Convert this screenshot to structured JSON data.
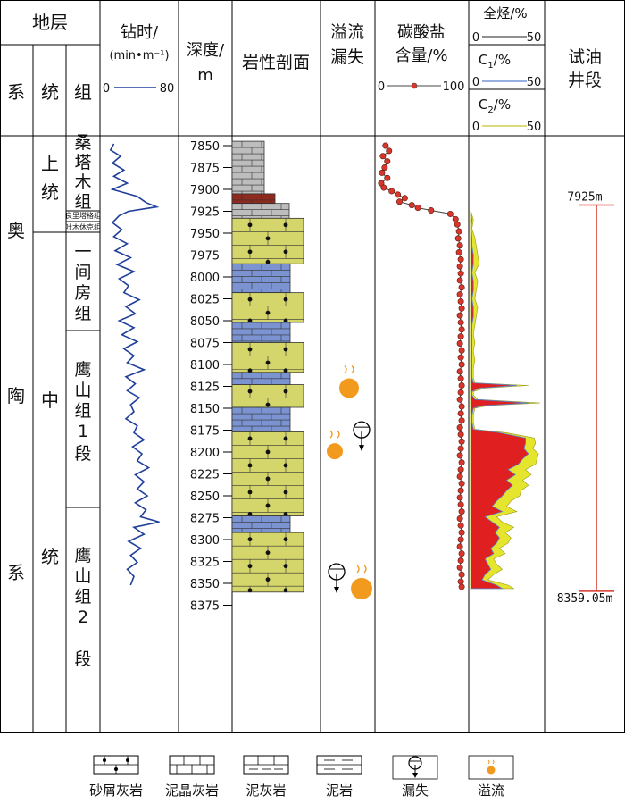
{
  "chart_data": {
    "type": "line",
    "header": {
      "strata": "地层",
      "system": "系",
      "series": "统",
      "group": "组",
      "drill_time": "钻时/",
      "drill_unit": "(min•m⁻¹)",
      "drill_min": "0",
      "drill_max": "80",
      "depth": "深度/",
      "depth_unit": "m",
      "lithology": "岩性剖面",
      "overflow_loss_1": "溢流",
      "overflow_loss_2": "漏失",
      "carbonate_1": "碳酸盐",
      "carbonate_2": "含量/%",
      "carbonate_min": "0",
      "carbonate_max": "100",
      "total_hc": "全烃/%",
      "c1": "C",
      "c1_sub": "1",
      "c1_tail": "/%",
      "c2": "C",
      "c2_sub": "2",
      "c2_tail": "/%",
      "gas_min": "0",
      "gas_max": "50",
      "test_1": "试油",
      "test_2": "井段"
    },
    "strata": {
      "system_label": [
        "奥",
        "陶",
        "系"
      ],
      "series": [
        {
          "chars": [
            "上",
            "统"
          ]
        },
        {
          "chars": [
            "中",
            "统"
          ]
        }
      ],
      "groups": [
        {
          "chars": [
            "桑",
            "塔",
            "木",
            "组"
          ]
        },
        {
          "chars": [
            "良里塔格组"
          ]
        },
        {
          "chars": [
            "吐木休克组"
          ]
        },
        {
          "chars": [
            "一",
            "间",
            "房",
            "组"
          ]
        },
        {
          "chars": [
            "鹰",
            "山",
            "组",
            "1",
            "段"
          ]
        },
        {
          "chars": [
            "鹰",
            "山",
            "组",
            "2",
            "段"
          ]
        }
      ]
    },
    "depth_ticks": [
      7850,
      7875,
      7900,
      7925,
      7950,
      7975,
      8000,
      8025,
      8050,
      8075,
      8100,
      8125,
      8150,
      8175,
      8200,
      8225,
      8250,
      8275,
      8300,
      8325,
      8350,
      8375
    ],
    "depth_range": [
      7845,
      8375
    ],
    "lithology_intervals": [
      {
        "top": 7845,
        "bottom": 7905,
        "type": "argillaceous_limestone_grey"
      },
      {
        "top": 7905,
        "bottom": 7916,
        "type": "red_marl"
      },
      {
        "top": 7916,
        "bottom": 7933,
        "type": "argillaceous_limestone_grey"
      },
      {
        "top": 7933,
        "bottom": 7985,
        "type": "bioclastic_limestone"
      },
      {
        "top": 7985,
        "bottom": 8018,
        "type": "micritic_limestone"
      },
      {
        "top": 8018,
        "bottom": 8052,
        "type": "bioclastic_limestone"
      },
      {
        "top": 8052,
        "bottom": 8075,
        "type": "micritic_limestone"
      },
      {
        "top": 8075,
        "bottom": 8109,
        "type": "bioclastic_limestone"
      },
      {
        "top": 8109,
        "bottom": 8123,
        "type": "micritic_limestone"
      },
      {
        "top": 8123,
        "bottom": 8149,
        "type": "bioclastic_limestone"
      },
      {
        "top": 8149,
        "bottom": 8177,
        "type": "micritic_limestone"
      },
      {
        "top": 8177,
        "bottom": 8273,
        "type": "bioclastic_limestone"
      },
      {
        "top": 8273,
        "bottom": 8292,
        "type": "micritic_limestone"
      },
      {
        "top": 8292,
        "bottom": 8360,
        "type": "bioclastic_limestone"
      }
    ],
    "events": [
      {
        "type": "overflow",
        "depth": 8125
      },
      {
        "type": "overflow",
        "depth": 8193
      },
      {
        "type": "loss",
        "depth": 8193
      },
      {
        "type": "loss",
        "depth": 8350
      },
      {
        "type": "overflow",
        "depth": 8354
      }
    ],
    "drill_time_series": {
      "name": "钻时",
      "depth": [
        7848,
        7855,
        7862,
        7870,
        7878,
        7885,
        7893,
        7900,
        7908,
        7915,
        7920,
        7925,
        7930,
        7938,
        7946,
        7954,
        7962,
        7970,
        7978,
        7986,
        7994,
        8002,
        8010,
        8018,
        8026,
        8034,
        8042,
        8050,
        8058,
        8066,
        8074,
        8082,
        8090,
        8098,
        8106,
        8114,
        8122,
        8130,
        8138,
        8146,
        8154,
        8162,
        8170,
        8178,
        8186,
        8194,
        8202,
        8210,
        8218,
        8226,
        8234,
        8242,
        8250,
        8258,
        8266,
        8274,
        8280,
        8286,
        8294,
        8302,
        8310,
        8318,
        8326,
        8334,
        8342,
        8352
      ],
      "value": [
        10,
        5,
        20,
        8,
        25,
        10,
        30,
        8,
        45,
        58,
        74,
        32,
        18,
        8,
        22,
        10,
        30,
        12,
        35,
        15,
        40,
        18,
        32,
        25,
        48,
        28,
        42,
        18,
        40,
        22,
        45,
        25,
        40,
        30,
        55,
        28,
        42,
        30,
        48,
        35,
        40,
        28,
        45,
        40,
        55,
        38,
        52,
        45,
        62,
        42,
        55,
        45,
        60,
        42,
        58,
        50,
        78,
        40,
        55,
        32,
        50,
        35,
        45,
        30,
        40,
        35
      ]
    },
    "carbonate_series": {
      "name": "碳酸盐含量",
      "depth": [
        7850,
        7856,
        7862,
        7868,
        7875,
        7881,
        7887,
        7893,
        7898,
        7902,
        7906,
        7910,
        7914,
        7918,
        7921,
        7924,
        7928,
        7934,
        7940,
        7948,
        7956,
        7964,
        7972,
        7980,
        7988,
        7996,
        8004,
        8012,
        8020,
        8028,
        8036,
        8044,
        8052,
        8060,
        8068,
        8076,
        8084,
        8092,
        8100,
        8108,
        8116,
        8124,
        8132,
        8140,
        8148,
        8156,
        8164,
        8172,
        8180,
        8188,
        8196,
        8204,
        8212,
        8220,
        8228,
        8236,
        8244,
        8252,
        8260,
        8268,
        8276,
        8284,
        8292,
        8300,
        8308,
        8316,
        8324,
        8332,
        8340,
        8348,
        8354
      ],
      "value": [
        8,
        12,
        5,
        10,
        7,
        4,
        10,
        3,
        6,
        15,
        22,
        30,
        24,
        38,
        45,
        60,
        82,
        88,
        90,
        92,
        91,
        93,
        92,
        94,
        93,
        94,
        93,
        95,
        93,
        94,
        95,
        93,
        94,
        95,
        94,
        93,
        95,
        94,
        95,
        93,
        94,
        95,
        94,
        93,
        95,
        94,
        95,
        93,
        94,
        95,
        94,
        93,
        95,
        94,
        93,
        95,
        94,
        93,
        94,
        95,
        93,
        94,
        95,
        94,
        93,
        95,
        94,
        93,
        95,
        94,
        95
      ]
    },
    "gas_series": [
      {
        "name": "全烃",
        "depth": [
          7926,
          7935,
          7945,
          7955,
          7965,
          7975,
          7985,
          7995,
          8005,
          8015,
          8025,
          8035,
          8045,
          8055,
          8065,
          8075,
          8085,
          8095,
          8105,
          8115,
          8121,
          8124,
          8127,
          8131,
          8135,
          8140,
          8144,
          8147,
          8150,
          8158,
          8166,
          8174,
          8178,
          8184,
          8190,
          8196,
          8202,
          8208,
          8214,
          8220,
          8226,
          8232,
          8238,
          8244,
          8250,
          8256,
          8262,
          8268,
          8274,
          8280,
          8286,
          8292,
          8298,
          8304,
          8310,
          8316,
          8322,
          8328,
          8334,
          8340,
          8346,
          8352,
          8356
        ],
        "value": [
          0.5,
          2,
          1,
          3,
          4,
          5,
          6,
          3,
          5,
          4,
          3,
          5,
          4,
          3,
          2,
          3,
          2,
          3,
          2,
          2,
          3,
          40,
          10,
          2,
          2,
          5,
          48,
          12,
          3,
          2,
          2,
          3,
          25,
          44,
          45,
          43,
          47,
          46,
          45,
          38,
          42,
          36,
          40,
          35,
          34,
          28,
          25,
          32,
          18,
          22,
          30,
          24,
          28,
          26,
          20,
          24,
          16,
          18,
          22,
          16,
          12,
          26,
          30
        ]
      },
      {
        "name": "C1",
        "depth": [
          7926,
          7935,
          7945,
          7955,
          7965,
          7975,
          7985,
          7995,
          8005,
          8015,
          8025,
          8035,
          8045,
          8055,
          8065,
          8075,
          8085,
          8095,
          8105,
          8115,
          8121,
          8124,
          8127,
          8131,
          8135,
          8140,
          8144,
          8147,
          8150,
          8158,
          8166,
          8174,
          8178,
          8184,
          8190,
          8196,
          8202,
          8208,
          8214,
          8220,
          8226,
          8232,
          8238,
          8244,
          8250,
          8256,
          8262,
          8268,
          8274,
          8280,
          8286,
          8292,
          8298,
          8304,
          8310,
          8316,
          8322,
          8328,
          8334,
          8340,
          8346,
          8352,
          8356
        ],
        "value": [
          0.3,
          1,
          0.5,
          1,
          1,
          2,
          2,
          1,
          2,
          2,
          1,
          2,
          2,
          1,
          1,
          1,
          1,
          1,
          1,
          1,
          2,
          32,
          6,
          1,
          1,
          3,
          40,
          8,
          2,
          1,
          1,
          2,
          20,
          38,
          38,
          37,
          40,
          36,
          33,
          26,
          31,
          25,
          29,
          25,
          22,
          18,
          15,
          22,
          10,
          15,
          20,
          17,
          20,
          18,
          14,
          16,
          10,
          12,
          14,
          10,
          8,
          18,
          22
        ]
      },
      {
        "name": "C2",
        "depth": [
          7926,
          8174,
          8356
        ],
        "value": [
          0,
          0,
          0
        ]
      }
    ],
    "test_interval": {
      "top": 7925,
      "bottom": 8359.05,
      "top_label": "7925m",
      "bottom_label": "8359.05m"
    },
    "legend": [
      {
        "key": "bioclastic_limestone",
        "label": "砂屑灰岩"
      },
      {
        "key": "micritic_limestone",
        "label": "泥晶灰岩"
      },
      {
        "key": "argillaceous_limestone",
        "label": "泥灰岩"
      },
      {
        "key": "mudstone",
        "label": "泥岩"
      },
      {
        "key": "loss",
        "label": "漏失"
      },
      {
        "key": "overflow",
        "label": "溢流"
      }
    ],
    "colors": {
      "drill_line": "#1f3f9a",
      "carbonate_line": "#444444",
      "carbonate_marker": "#d8362a",
      "total_hc_fill": "#e5e52e",
      "c1_fill": "#e02020",
      "c1_line": "#5a7fd1",
      "c2_line": "#c8c832",
      "test_bar": "#d8362a",
      "overflow": "#f29a1e",
      "bioclastic": "#d4d56a",
      "micritic": "#7b93d0",
      "argillaceous": "#bdbdbd",
      "red_marl": "#8e2a1e"
    }
  }
}
